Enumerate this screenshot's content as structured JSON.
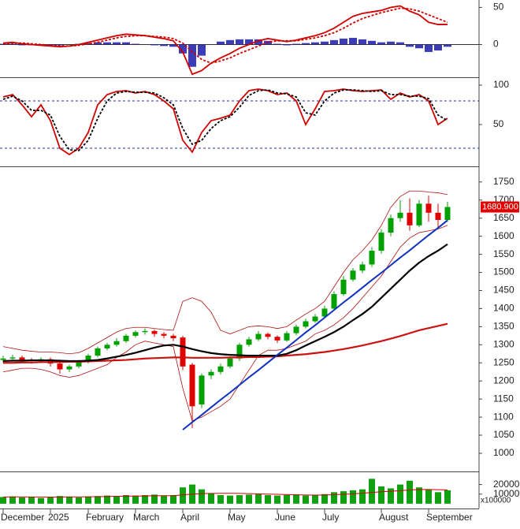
{
  "chart_data": [
    {
      "type": "macd",
      "ylim": [
        -43,
        60
      ],
      "yticks": [
        0,
        50
      ],
      "series": [
        {
          "color": "#d00000",
          "values": [
            2,
            3,
            1,
            0,
            -1,
            -2,
            -3,
            -2,
            0,
            3,
            6,
            9,
            12,
            14,
            13,
            12,
            10,
            8,
            5,
            -10,
            -40,
            -35,
            -25,
            -18,
            -12,
            -5,
            0,
            5,
            8,
            6,
            4,
            6,
            9,
            12,
            16,
            22,
            30,
            38,
            42,
            44,
            46,
            50,
            52,
            45,
            40,
            30,
            27,
            27
          ]
        },
        {
          "color": "#d00000",
          "dashed": true,
          "values": [
            1,
            2,
            2,
            1,
            0,
            -1,
            -2,
            -2,
            -1,
            1,
            3,
            6,
            9,
            11,
            12,
            12,
            11,
            10,
            8,
            2,
            -10,
            -20,
            -25,
            -22,
            -18,
            -12,
            -7,
            -2,
            3,
            5,
            5,
            5,
            7,
            9,
            12,
            16,
            22,
            29,
            35,
            39,
            43,
            46,
            49,
            48,
            45,
            40,
            35,
            30
          ]
        },
        {
          "kind": "histogram",
          "color": "#1a1aaa",
          "values": [
            1,
            1,
            -1,
            -1,
            -1,
            -1,
            -1,
            0,
            1,
            2,
            3,
            3,
            3,
            3,
            1,
            0,
            -1,
            -2,
            -3,
            -12,
            -30,
            -15,
            0,
            4,
            6,
            7,
            7,
            7,
            5,
            1,
            -1,
            1,
            2,
            3,
            4,
            6,
            8,
            9,
            7,
            5,
            3,
            4,
            3,
            -3,
            -5,
            -10,
            -8,
            -3
          ]
        }
      ]
    },
    {
      "type": "stochastic",
      "ylim": [
        -2,
        108
      ],
      "yticks": [
        50,
        100
      ],
      "levels": [
        80,
        20
      ],
      "series": [
        {
          "color": "#d00000",
          "values": [
            85,
            88,
            75,
            60,
            75,
            55,
            20,
            12,
            20,
            40,
            75,
            88,
            92,
            93,
            90,
            92,
            88,
            80,
            70,
            30,
            15,
            40,
            55,
            58,
            62,
            80,
            93,
            95,
            93,
            88,
            90,
            80,
            50,
            70,
            92,
            93,
            95,
            93,
            92,
            93,
            94,
            82,
            90,
            85,
            88,
            80,
            50,
            58
          ]
        },
        {
          "color": "#000000",
          "dashed": true,
          "values": [
            82,
            86,
            80,
            68,
            68,
            62,
            35,
            18,
            17,
            30,
            58,
            80,
            90,
            92,
            91,
            91,
            90,
            84,
            75,
            45,
            25,
            30,
            45,
            55,
            60,
            72,
            87,
            93,
            94,
            90,
            89,
            85,
            65,
            62,
            80,
            90,
            94,
            94,
            93,
            92,
            93,
            88,
            88,
            86,
            86,
            83,
            62,
            55
          ]
        }
      ]
    },
    {
      "type": "candlestick",
      "ylim": [
        952,
        1791
      ],
      "yticks": [
        1000,
        1050,
        1100,
        1150,
        1200,
        1250,
        1300,
        1350,
        1400,
        1450,
        1500,
        1550,
        1600,
        1650,
        1700,
        1750
      ],
      "up_color": "#00a000",
      "down_color": "#e00000",
      "open": [
        1258,
        1262,
        1265,
        1258,
        1255,
        1260,
        1248,
        1232,
        1240,
        1252,
        1270,
        1290,
        1300,
        1310,
        1325,
        1335,
        1338,
        1330,
        1325,
        1320,
        1245,
        1135,
        1215,
        1225,
        1240,
        1262,
        1300,
        1315,
        1330,
        1322,
        1312,
        1332,
        1350,
        1365,
        1378,
        1400,
        1440,
        1480,
        1505,
        1522,
        1560,
        1610,
        1650,
        1665,
        1630,
        1690,
        1665,
        1645
      ],
      "high": [
        1270,
        1272,
        1270,
        1264,
        1265,
        1265,
        1252,
        1245,
        1258,
        1275,
        1295,
        1305,
        1318,
        1330,
        1340,
        1345,
        1342,
        1335,
        1330,
        1325,
        1250,
        1220,
        1232,
        1248,
        1268,
        1305,
        1322,
        1338,
        1334,
        1326,
        1338,
        1356,
        1372,
        1385,
        1408,
        1448,
        1490,
        1512,
        1530,
        1570,
        1620,
        1660,
        1700,
        1705,
        1700,
        1712,
        1690,
        1695
      ],
      "low": [
        1250,
        1255,
        1252,
        1248,
        1250,
        1240,
        1220,
        1225,
        1235,
        1248,
        1265,
        1285,
        1295,
        1305,
        1320,
        1328,
        1322,
        1318,
        1310,
        1230,
        1070,
        1125,
        1205,
        1218,
        1235,
        1255,
        1295,
        1310,
        1315,
        1305,
        1308,
        1326,
        1345,
        1360,
        1372,
        1395,
        1435,
        1475,
        1498,
        1515,
        1552,
        1600,
        1640,
        1615,
        1625,
        1640,
        1625,
        1640
      ],
      "close": [
        1262,
        1265,
        1258,
        1255,
        1260,
        1248,
        1232,
        1240,
        1252,
        1270,
        1290,
        1300,
        1310,
        1325,
        1335,
        1338,
        1330,
        1325,
        1318,
        1240,
        1130,
        1215,
        1225,
        1240,
        1262,
        1300,
        1315,
        1330,
        1322,
        1312,
        1332,
        1350,
        1365,
        1378,
        1400,
        1440,
        1480,
        1505,
        1522,
        1560,
        1610,
        1650,
        1665,
        1630,
        1690,
        1665,
        1645,
        1680.9
      ],
      "last_price": {
        "value": 1680.9,
        "label": "1680.900"
      },
      "series": [
        {
          "color": "#b01010",
          "width": 0.8,
          "values": [
            1295,
            1290,
            1285,
            1282,
            1280,
            1280,
            1278,
            1275,
            1278,
            1290,
            1305,
            1320,
            1335,
            1345,
            1348,
            1348,
            1345,
            1342,
            1340,
            1420,
            1430,
            1420,
            1390,
            1340,
            1330,
            1340,
            1350,
            1352,
            1350,
            1345,
            1350,
            1368,
            1385,
            1400,
            1420,
            1460,
            1500,
            1535,
            1560,
            1590,
            1630,
            1680,
            1710,
            1725,
            1725,
            1722,
            1720,
            1715
          ]
        },
        {
          "color": "#b01010",
          "width": 0.8,
          "values": [
            1225,
            1230,
            1235,
            1235,
            1232,
            1225,
            1215,
            1210,
            1215,
            1225,
            1235,
            1245,
            1265,
            1280,
            1300,
            1310,
            1305,
            1300,
            1295,
            1180,
            1090,
            1100,
            1115,
            1130,
            1150,
            1190,
            1230,
            1270,
            1285,
            1285,
            1290,
            1300,
            1310,
            1330,
            1340,
            1355,
            1375,
            1400,
            1430,
            1460,
            1490,
            1530,
            1570,
            1595,
            1610,
            1615,
            1620,
            1630
          ]
        },
        {
          "color": "#cc1111",
          "width": 2.2,
          "values": [
            1250,
            1250,
            1251,
            1251,
            1252,
            1252,
            1252,
            1253,
            1253,
            1254,
            1255,
            1256,
            1257,
            1258,
            1260,
            1262,
            1263,
            1264,
            1265,
            1265,
            1264,
            1264,
            1264,
            1264,
            1265,
            1265,
            1266,
            1266,
            1267,
            1268,
            1270,
            1272,
            1274,
            1277,
            1280,
            1284,
            1288,
            1293,
            1298,
            1304,
            1310,
            1317,
            1324,
            1332,
            1340,
            1346,
            1352,
            1358
          ]
        },
        {
          "color": "#000000",
          "width": 2.2,
          "values": [
            1255,
            1256,
            1256,
            1257,
            1257,
            1257,
            1256,
            1255,
            1255,
            1256,
            1258,
            1262,
            1267,
            1272,
            1278,
            1285,
            1292,
            1298,
            1300,
            1295,
            1288,
            1282,
            1277,
            1274,
            1272,
            1271,
            1270,
            1270,
            1270,
            1270,
            1275,
            1285,
            1298,
            1310,
            1322,
            1335,
            1350,
            1368,
            1385,
            1405,
            1430,
            1455,
            1480,
            1505,
            1527,
            1545,
            1560,
            1578
          ]
        },
        {
          "color": "#1030c0",
          "width": 2,
          "values": [
            null,
            null,
            null,
            null,
            null,
            null,
            null,
            null,
            null,
            null,
            null,
            null,
            null,
            null,
            null,
            null,
            null,
            null,
            null,
            1065,
            1086,
            1106,
            1127,
            1148,
            1168,
            1189,
            1210,
            1230,
            1251,
            1272,
            1292,
            1313,
            1334,
            1354,
            1375,
            1396,
            1417,
            1437,
            1458,
            1479,
            1499,
            1520,
            1541,
            1561,
            1582,
            1603,
            1623,
            1644
          ]
        }
      ]
    },
    {
      "type": "bar",
      "ylim": [
        -5000,
        32000
      ],
      "yticks": [
        10000,
        20000
      ],
      "unit_label": "x100000",
      "color": "#10a010",
      "categories": [
        "December",
        null,
        null,
        null,
        null,
        "2025",
        null,
        null,
        null,
        "February",
        null,
        null,
        null,
        null,
        "March",
        null,
        null,
        null,
        null,
        "April",
        null,
        null,
        null,
        null,
        "May",
        null,
        null,
        null,
        null,
        "June",
        null,
        null,
        null,
        null,
        "July",
        null,
        null,
        null,
        null,
        null,
        "August",
        null,
        null,
        null,
        null,
        "September",
        null,
        null
      ],
      "values": [
        7000,
        7500,
        6500,
        7000,
        6000,
        6500,
        8000,
        7000,
        6500,
        7500,
        8000,
        8500,
        8000,
        9000,
        8500,
        9000,
        9500,
        8500,
        9000,
        17000,
        20000,
        15000,
        11000,
        9000,
        8500,
        9000,
        9500,
        10000,
        9000,
        8500,
        9000,
        9500,
        8500,
        9000,
        10000,
        12000,
        13000,
        14000,
        15000,
        26000,
        18000,
        16000,
        20000,
        24000,
        17000,
        15000,
        12000,
        14000
      ],
      "series": [
        {
          "color": "#d00000",
          "values": [
            7000,
            7100,
            7100,
            7000,
            7000,
            6900,
            7000,
            7100,
            7100,
            7200,
            7300,
            7500,
            7600,
            7800,
            8000,
            8100,
            8300,
            8400,
            8500,
            9200,
            10000,
            10500,
            10700,
            10800,
            10800,
            10700,
            10500,
            10300,
            10000,
            9800,
            9500,
            9300,
            9100,
            9000,
            9100,
            9400,
            9800,
            10300,
            10900,
            11800,
            12500,
            13000,
            13600,
            14300,
            14700,
            14800,
            14600,
            14300
          ]
        }
      ]
    }
  ]
}
